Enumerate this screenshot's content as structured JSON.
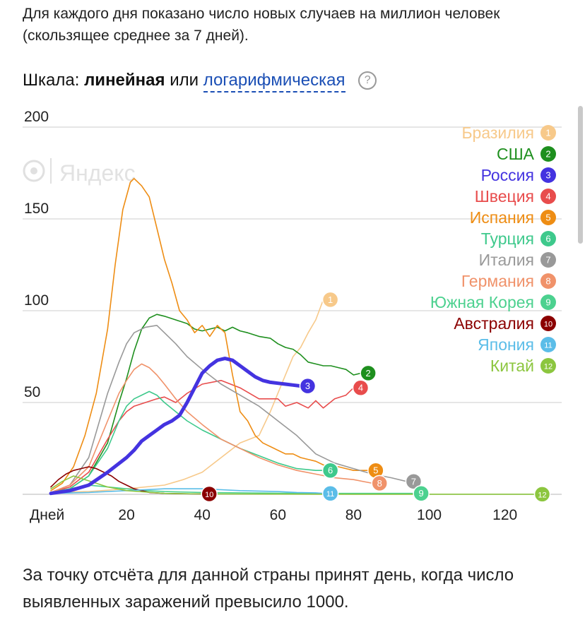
{
  "intro": "Для каждого дня показано число новых случаев на миллион человек (скользящее среднее за 7 дней).",
  "scale": {
    "label": "Шкала:",
    "active": "линейная",
    "or": "или",
    "alternative": "логарифмическая",
    "help": "?"
  },
  "watermark": "Яндекс",
  "footer": "За точку отсчёта для данной страны принят день, когда число выявленных заражений превысило 1000.",
  "chart_data": {
    "type": "line",
    "xlabel": "Дней",
    "ylabel": "",
    "xlim": [
      0,
      135
    ],
    "ylim": [
      0,
      200
    ],
    "x_ticks": [
      20,
      40,
      60,
      80,
      100,
      120
    ],
    "y_ticks": [
      50,
      100,
      150,
      200
    ],
    "grid": "horizontal",
    "legend_position": "top-right",
    "series": [
      {
        "name": "Бразилия",
        "marker": "1",
        "color": "#f7c98a",
        "width": 1.6,
        "x": [
          0,
          10,
          20,
          30,
          35,
          40,
          45,
          50,
          55,
          58,
          60,
          62,
          64,
          66,
          68,
          70,
          72
        ],
        "y": [
          1,
          1.5,
          3,
          5,
          8,
          12,
          20,
          28,
          32,
          45,
          55,
          65,
          75,
          80,
          88,
          95,
          106
        ]
      },
      {
        "name": "США",
        "marker": "2",
        "color": "#1e8f1e",
        "width": 1.6,
        "x": [
          0,
          5,
          10,
          15,
          18,
          20,
          22,
          24,
          26,
          28,
          30,
          33,
          36,
          38,
          40,
          42,
          44,
          46,
          48,
          50,
          52,
          55,
          58,
          60,
          62,
          64,
          66,
          68,
          70,
          72,
          74,
          76,
          78,
          80,
          82
        ],
        "y": [
          1,
          3,
          10,
          28,
          50,
          63,
          78,
          90,
          96,
          98,
          97,
          95,
          93,
          90,
          89,
          90,
          91,
          89,
          91,
          89,
          88,
          86,
          85,
          82,
          80,
          79,
          76,
          72,
          71,
          70,
          70,
          69,
          68,
          65,
          66
        ]
      },
      {
        "name": "Россия",
        "marker": "3",
        "color": "#4433e0",
        "width": 5,
        "x": [
          0,
          5,
          10,
          15,
          20,
          22,
          24,
          26,
          28,
          30,
          32,
          34,
          36,
          38,
          40,
          42,
          44,
          46,
          48,
          50,
          52,
          54,
          56,
          58,
          60,
          62,
          64,
          66
        ],
        "y": [
          0.5,
          2,
          5,
          12,
          20,
          24,
          29,
          32,
          35,
          38,
          40,
          43,
          50,
          58,
          66,
          70,
          73,
          74,
          73,
          70,
          67,
          64,
          62,
          61,
          60.5,
          60,
          59.5,
          59
        ]
      },
      {
        "name": "Швеция",
        "marker": "4",
        "color": "#e84c4c",
        "width": 1.6,
        "x": [
          0,
          5,
          10,
          15,
          18,
          20,
          22,
          25,
          28,
          30,
          33,
          36,
          40,
          45,
          50,
          55,
          60,
          62,
          65,
          68,
          70,
          72,
          75,
          78,
          80
        ],
        "y": [
          1,
          4,
          12,
          30,
          40,
          45,
          48,
          50,
          52,
          53,
          50,
          55,
          60,
          62,
          58,
          52,
          52,
          48,
          50,
          47,
          51,
          47,
          52,
          54,
          58
        ]
      },
      {
        "name": "Испания",
        "marker": "5",
        "color": "#ee8d14",
        "width": 1.6,
        "x": [
          0,
          3,
          6,
          9,
          12,
          15,
          17,
          19,
          21,
          22,
          24,
          26,
          28,
          30,
          32,
          34,
          36,
          38,
          40,
          42,
          44,
          46,
          48,
          50,
          52,
          54,
          56,
          58,
          60,
          62,
          64,
          66,
          68,
          70,
          72,
          74,
          76,
          78,
          80,
          82,
          84
        ],
        "y": [
          2,
          6,
          15,
          32,
          55,
          90,
          125,
          155,
          170,
          172,
          168,
          162,
          145,
          128,
          115,
          100,
          95,
          88,
          92,
          86,
          92,
          88,
          65,
          45,
          40,
          32,
          28,
          26,
          24,
          22,
          22,
          20,
          19,
          18,
          16,
          15,
          15,
          14,
          13,
          13,
          13
        ]
      },
      {
        "name": "Турция",
        "marker": "6",
        "color": "#3ec98c",
        "width": 1.6,
        "x": [
          0,
          5,
          10,
          15,
          18,
          20,
          22,
          24,
          26,
          28,
          30,
          33,
          36,
          40,
          45,
          50,
          55,
          60,
          65,
          70,
          72
        ],
        "y": [
          1,
          3,
          10,
          25,
          40,
          48,
          52,
          54,
          56,
          54,
          50,
          45,
          40,
          35,
          30,
          25,
          21,
          17,
          14,
          13,
          13
        ]
      },
      {
        "name": "Италия",
        "marker": "7",
        "color": "#999999",
        "width": 1.6,
        "x": [
          0,
          5,
          10,
          15,
          18,
          20,
          22,
          25,
          28,
          30,
          33,
          36,
          40,
          45,
          50,
          55,
          60,
          65,
          70,
          75,
          80,
          85,
          90,
          94
        ],
        "y": [
          1,
          5,
          20,
          55,
          72,
          82,
          88,
          91,
          92,
          88,
          82,
          75,
          68,
          60,
          54,
          48,
          40,
          32,
          22,
          17,
          14,
          11,
          9,
          7
        ]
      },
      {
        "name": "Германия",
        "marker": "8",
        "color": "#f0926a",
        "width": 1.6,
        "x": [
          0,
          5,
          10,
          15,
          18,
          20,
          22,
          24,
          26,
          28,
          30,
          33,
          36,
          40,
          45,
          50,
          55,
          60,
          65,
          70,
          75,
          80,
          85
        ],
        "y": [
          1,
          5,
          15,
          40,
          55,
          62,
          68,
          71,
          69,
          65,
          60,
          52,
          45,
          38,
          30,
          25,
          20,
          16,
          13,
          11,
          9,
          8,
          6
        ]
      },
      {
        "name": "Южная Корея",
        "marker": "9",
        "color": "#4cd18f",
        "width": 1.6,
        "x": [
          0,
          5,
          10,
          15,
          20,
          25,
          30,
          40,
          50,
          60,
          70,
          80,
          90,
          96
        ],
        "y": [
          1,
          3,
          5,
          4,
          3,
          2,
          1.5,
          1,
          0.8,
          0.6,
          0.5,
          0.5,
          0.5,
          0.5
        ]
      },
      {
        "name": "Австралия",
        "marker": "10",
        "color": "#8b0000",
        "width": 1.6,
        "x": [
          0,
          2,
          4,
          6,
          8,
          10,
          12,
          14,
          16,
          18,
          20,
          22,
          24,
          26,
          30,
          35,
          40
        ],
        "y": [
          4,
          8,
          11,
          13,
          14,
          15,
          14,
          12,
          10,
          7,
          5,
          3,
          2,
          1,
          0.5,
          0.3,
          0.2
        ]
      },
      {
        "name": "Япония",
        "marker": "11",
        "color": "#5bbde8",
        "width": 1.6,
        "x": [
          0,
          10,
          20,
          30,
          40,
          50,
          60,
          65,
          70,
          72
        ],
        "y": [
          0.5,
          1,
          2,
          3,
          3,
          2,
          1.5,
          1,
          0.8,
          0.5
        ]
      },
      {
        "name": "Китай",
        "marker": "12",
        "color": "#8cc63f",
        "width": 1.6,
        "x": [
          0,
          3,
          6,
          9,
          12,
          15,
          20,
          30,
          40,
          60,
          80,
          100,
          128
        ],
        "y": [
          3,
          7,
          10,
          8,
          6,
          4,
          2,
          0.5,
          0.2,
          0.1,
          0.05,
          0.05,
          0.05
        ]
      }
    ]
  }
}
